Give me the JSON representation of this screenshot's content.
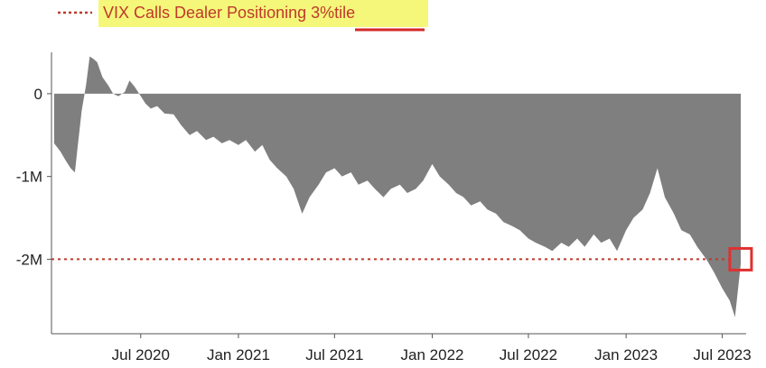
{
  "chart_data": {
    "type": "area",
    "title": "",
    "xlabel": "",
    "ylabel": "",
    "grid": false,
    "legend_placement": "top-left",
    "colors": {
      "area": "#7f7f7f",
      "reference_line": "#c0392b",
      "legend_highlight": "#f4f77a",
      "underline": "#d62828",
      "marker_box": "#e03030",
      "axis": "#555555"
    },
    "xlim": [
      "2020-01-15",
      "2023-08-15"
    ],
    "ylim": [
      -2900000,
      500000
    ],
    "x_ticks": [
      {
        "date": "2020-07-01",
        "label": "Jul 2020"
      },
      {
        "date": "2021-01-01",
        "label": "Jan 2021"
      },
      {
        "date": "2021-07-01",
        "label": "Jul 2021"
      },
      {
        "date": "2022-01-01",
        "label": "Jan 2022"
      },
      {
        "date": "2022-07-01",
        "label": "Jul 2022"
      },
      {
        "date": "2023-01-01",
        "label": "Jan 2023"
      },
      {
        "date": "2023-07-01",
        "label": "Jul 2023"
      }
    ],
    "y_ticks": [
      {
        "value": 0,
        "label": "0"
      },
      {
        "value": -1000000,
        "label": "-1M"
      },
      {
        "value": -2000000,
        "label": "-2M"
      }
    ],
    "reference_line": {
      "name_prefix": "VIX Calls Dealer Positioning ",
      "name_highlight": "3%tile",
      "value": -2000000
    },
    "highlight_box": {
      "x": "2023-08-03",
      "y": -2000000
    },
    "series": [
      {
        "values_desc": "dealer positioning",
        "x": [
          "2020-01-20",
          "2020-02-01",
          "2020-02-10",
          "2020-02-20",
          "2020-02-28",
          "2020-03-05",
          "2020-03-12",
          "2020-03-20",
          "2020-03-27",
          "2020-04-03",
          "2020-04-10",
          "2020-04-20",
          "2020-05-01",
          "2020-05-10",
          "2020-05-20",
          "2020-06-01",
          "2020-06-10",
          "2020-06-20",
          "2020-07-01",
          "2020-07-10",
          "2020-07-20",
          "2020-08-01",
          "2020-08-15",
          "2020-09-01",
          "2020-09-15",
          "2020-10-01",
          "2020-10-15",
          "2020-11-01",
          "2020-11-15",
          "2020-12-01",
          "2020-12-15",
          "2021-01-01",
          "2021-01-15",
          "2021-02-01",
          "2021-02-15",
          "2021-03-01",
          "2021-03-15",
          "2021-04-01",
          "2021-04-15",
          "2021-05-01",
          "2021-05-15",
          "2021-06-01",
          "2021-06-15",
          "2021-07-01",
          "2021-07-15",
          "2021-08-01",
          "2021-08-15",
          "2021-09-01",
          "2021-09-15",
          "2021-10-01",
          "2021-10-15",
          "2021-11-01",
          "2021-11-15",
          "2021-12-01",
          "2021-12-15",
          "2022-01-01",
          "2022-01-15",
          "2022-02-01",
          "2022-02-15",
          "2022-03-01",
          "2022-03-15",
          "2022-04-01",
          "2022-04-15",
          "2022-05-01",
          "2022-05-15",
          "2022-06-01",
          "2022-06-15",
          "2022-07-01",
          "2022-07-15",
          "2022-08-01",
          "2022-08-15",
          "2022-09-01",
          "2022-09-15",
          "2022-10-01",
          "2022-10-15",
          "2022-11-01",
          "2022-11-15",
          "2022-12-01",
          "2022-12-15",
          "2023-01-01",
          "2023-01-15",
          "2023-02-01",
          "2023-02-15",
          "2023-03-01",
          "2023-03-15",
          "2023-04-01",
          "2023-04-15",
          "2023-05-01",
          "2023-05-15",
          "2023-06-01",
          "2023-06-15",
          "2023-07-01",
          "2023-07-15",
          "2023-07-25",
          "2023-08-05"
        ],
        "values": [
          -600000,
          -700000,
          -800000,
          -900000,
          -950000,
          -600000,
          -200000,
          100000,
          450000,
          420000,
          380000,
          200000,
          100000,
          0,
          -30000,
          20000,
          160000,
          80000,
          -30000,
          -120000,
          -180000,
          -150000,
          -240000,
          -250000,
          -380000,
          -500000,
          -450000,
          -560000,
          -520000,
          -600000,
          -560000,
          -620000,
          -560000,
          -700000,
          -620000,
          -800000,
          -900000,
          -1000000,
          -1150000,
          -1450000,
          -1250000,
          -1100000,
          -950000,
          -900000,
          -1000000,
          -950000,
          -1100000,
          -1050000,
          -1150000,
          -1250000,
          -1150000,
          -1100000,
          -1200000,
          -1150000,
          -1050000,
          -850000,
          -1000000,
          -1100000,
          -1200000,
          -1250000,
          -1350000,
          -1300000,
          -1400000,
          -1450000,
          -1550000,
          -1600000,
          -1650000,
          -1750000,
          -1800000,
          -1850000,
          -1900000,
          -1800000,
          -1850000,
          -1750000,
          -1850000,
          -1700000,
          -1800000,
          -1750000,
          -1900000,
          -1650000,
          -1500000,
          -1400000,
          -1200000,
          -900000,
          -1250000,
          -1450000,
          -1650000,
          -1700000,
          -1850000,
          -2000000,
          -2150000,
          -2350000,
          -2500000,
          -2700000,
          -2050000
        ]
      }
    ]
  }
}
